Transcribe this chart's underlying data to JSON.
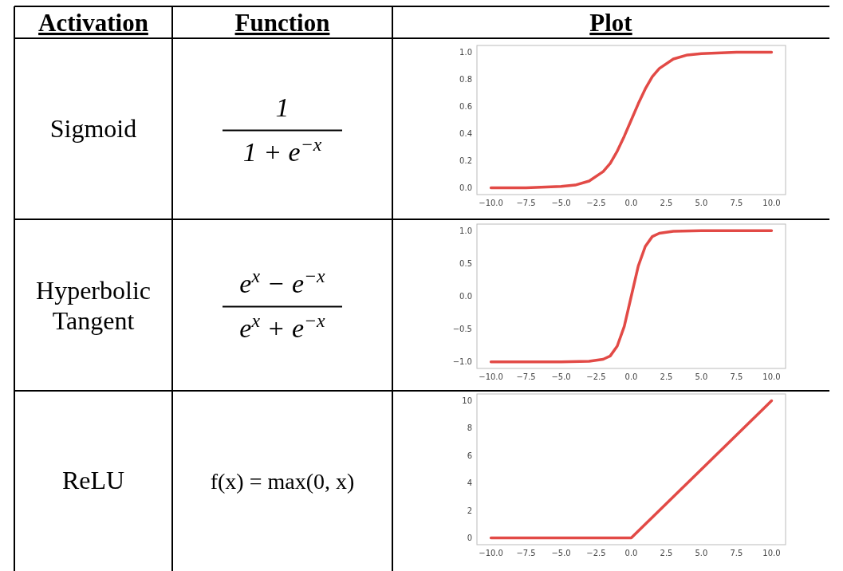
{
  "chart_data": [
    {
      "type": "other",
      "annotations": [
        "Activation",
        "Function",
        "Plot",
        "Sigmoid",
        "1",
        "1 + e$^{−x}$",
        "Hyperbolic Tangent",
        "e$^{x}$ − e$^{−x}$",
        "e$^{x}$ + e$^{−x}$",
        "ReLU",
        "f(x) = max(0, x)"
      ]
    },
    {
      "type": "line",
      "x": [
        -10,
        -7.5,
        -5,
        -4,
        -3,
        -2,
        -1.5,
        -1,
        -0.5,
        0,
        0.5,
        1,
        1.5,
        2,
        3,
        4,
        5,
        7.5,
        10
      ],
      "series": [
        {
          "color": "#e24a46",
          "values": [
            0.0,
            0.0,
            0.01,
            0.02,
            0.05,
            0.12,
            0.18,
            0.27,
            0.38,
            0.5,
            0.62,
            0.73,
            0.82,
            0.88,
            0.95,
            0.98,
            0.99,
            1.0,
            1.0
          ]
        }
      ],
      "xlim": [
        -11,
        11
      ],
      "ylim": [
        -0.05,
        1.05
      ],
      "xticks": [
        {
          "value": -10,
          "label": "−10.0"
        },
        {
          "value": -7.5,
          "label": "−7.5"
        },
        {
          "value": -5,
          "label": "−5.0"
        },
        {
          "value": -2.5,
          "label": "−2.5"
        },
        {
          "value": 0,
          "label": "0.0"
        },
        {
          "value": 2.5,
          "label": "2.5"
        },
        {
          "value": 5,
          "label": "5.0"
        },
        {
          "value": 7.5,
          "label": "7.5"
        },
        {
          "value": 10,
          "label": "10.0"
        }
      ],
      "yticks": [
        {
          "value": 0,
          "label": "0.0"
        },
        {
          "value": 0.2,
          "label": "0.2"
        },
        {
          "value": 0.4,
          "label": "0.4"
        },
        {
          "value": 0.6,
          "label": "0.6"
        },
        {
          "value": 0.8,
          "label": "0.8"
        },
        {
          "value": 1,
          "label": "1.0"
        }
      ]
    },
    {
      "type": "line",
      "x": [
        -10,
        -5,
        -3,
        -2,
        -1.5,
        -1,
        -0.5,
        0,
        0.5,
        1,
        1.5,
        2,
        3,
        5,
        10
      ],
      "series": [
        {
          "color": "#e24a46",
          "values": [
            -1.0,
            -1.0,
            -0.99,
            -0.96,
            -0.91,
            -0.76,
            -0.46,
            0.0,
            0.46,
            0.76,
            0.91,
            0.96,
            0.99,
            1.0,
            1.0
          ]
        }
      ],
      "xlim": [
        -11,
        11
      ],
      "ylim": [
        -1.1,
        1.1
      ],
      "xticks": [
        {
          "value": -10,
          "label": "−10.0"
        },
        {
          "value": -7.5,
          "label": "−7.5"
        },
        {
          "value": -5,
          "label": "−5.0"
        },
        {
          "value": -2.5,
          "label": "−2.5"
        },
        {
          "value": 0,
          "label": "0.0"
        },
        {
          "value": 2.5,
          "label": "2.5"
        },
        {
          "value": 5,
          "label": "5.0"
        },
        {
          "value": 7.5,
          "label": "7.5"
        },
        {
          "value": 10,
          "label": "10.0"
        }
      ],
      "yticks": [
        {
          "value": -1,
          "label": "−1.0"
        },
        {
          "value": -0.5,
          "label": "−0.5"
        },
        {
          "value": 0,
          "label": "0.0"
        },
        {
          "value": 0.5,
          "label": "0.5"
        },
        {
          "value": 1,
          "label": "1.0"
        }
      ]
    },
    {
      "type": "line",
      "x": [
        -10,
        0,
        10
      ],
      "series": [
        {
          "color": "#e24a46",
          "values": [
            0,
            0,
            10
          ]
        }
      ],
      "xlim": [
        -11,
        11
      ],
      "ylim": [
        -0.5,
        10.5
      ],
      "xticks": [
        {
          "value": -10,
          "label": "−10.0"
        },
        {
          "value": -7.5,
          "label": "−7.5"
        },
        {
          "value": -5,
          "label": "−5.0"
        },
        {
          "value": -2.5,
          "label": "−2.5"
        },
        {
          "value": 0,
          "label": "0.0"
        },
        {
          "value": 2.5,
          "label": "2.5"
        },
        {
          "value": 5,
          "label": "5.0"
        },
        {
          "value": 7.5,
          "label": "7.5"
        },
        {
          "value": 10,
          "label": "10.0"
        }
      ],
      "yticks": [
        0,
        2,
        4,
        6,
        8,
        10
      ]
    }
  ]
}
